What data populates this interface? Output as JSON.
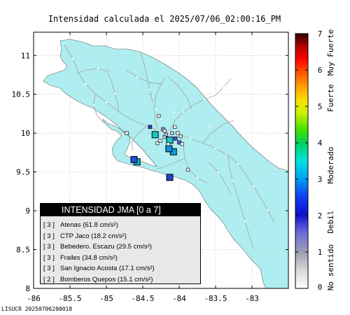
{
  "title": "Intensidad calculada el 2025/07/06_02:00:16_PM",
  "footer": "LISUCR 20250706200018",
  "map": {
    "x_ticks": [
      "-86",
      "-85.5",
      "-85",
      "-84.5",
      "-84",
      "-83.5",
      "-83"
    ],
    "y_ticks": [
      "11",
      "10.5",
      "10",
      "9.5",
      "9",
      "8.5",
      "8"
    ],
    "land_color": "#aeeef0",
    "stations": [
      {
        "lon": -84.33,
        "lat": 9.98,
        "color": "#18c8c8",
        "intensity": 3
      },
      {
        "lon": -84.13,
        "lat": 9.91,
        "color": "#18c8d8",
        "intensity": 3
      },
      {
        "lon": -84.08,
        "lat": 9.76,
        "color": "#10a0d8",
        "intensity": 3
      },
      {
        "lon": -84.14,
        "lat": 9.8,
        "color": "#1090e0",
        "intensity": 3
      },
      {
        "lon": -84.58,
        "lat": 9.63,
        "color": "#10b8c8",
        "intensity": 3
      },
      {
        "lon": -84.62,
        "lat": 9.66,
        "color": "#2050e0",
        "intensity": 2
      },
      {
        "lon": -84.13,
        "lat": 9.43,
        "color": "#2040d0",
        "intensity": 2
      },
      {
        "lon": -84.22,
        "lat": 10.05,
        "color": "#9090e0",
        "intensity": 1
      },
      {
        "lon": -84.05,
        "lat": 9.93,
        "color": "#5050d0",
        "intensity": 1
      },
      {
        "lon": -84.0,
        "lat": 9.88,
        "color": "#5858d8",
        "intensity": 1
      },
      {
        "lon": -84.4,
        "lat": 10.08,
        "color": "#3838c0",
        "intensity": 1
      },
      {
        "lon": -84.1,
        "lat": 10.0,
        "color": "#d0d0e0",
        "intensity": 0
      },
      {
        "lon": -84.2,
        "lat": 9.95,
        "color": "#d8d8e8",
        "intensity": 0
      },
      {
        "lon": -83.98,
        "lat": 9.96,
        "color": "#e0e0e0",
        "intensity": 0
      },
      {
        "lon": -84.26,
        "lat": 9.9,
        "color": "#e4e4e4",
        "intensity": 0
      },
      {
        "lon": -84.28,
        "lat": 10.22,
        "color": "#e8e8e8",
        "intensity": 0
      },
      {
        "lon": -84.72,
        "lat": 10.0,
        "color": "#e8e8e8",
        "intensity": 0
      },
      {
        "lon": -84.02,
        "lat": 10.0,
        "color": "#ececec",
        "intensity": 0
      },
      {
        "lon": -84.06,
        "lat": 10.08,
        "color": "#ececec",
        "intensity": 0
      },
      {
        "lon": -84.2,
        "lat": 10.03,
        "color": "#e0e0e0",
        "intensity": 0
      },
      {
        "lon": -83.96,
        "lat": 9.86,
        "color": "#f0f0f0",
        "intensity": 0
      },
      {
        "lon": -83.88,
        "lat": 9.53,
        "color": "#f0f0f0",
        "intensity": 0
      },
      {
        "lon": -84.15,
        "lat": 9.86,
        "color": "#e8e8e8",
        "intensity": 0
      },
      {
        "lon": -84.3,
        "lat": 9.87,
        "color": "#e8e8e8",
        "intensity": 0
      },
      {
        "lon": -84.18,
        "lat": 9.98,
        "color": "#c0c0d8",
        "intensity": 0
      }
    ]
  },
  "colorbar": {
    "ticks": [
      "7",
      "6",
      "5",
      "4",
      "3",
      "2",
      "1",
      "0"
    ],
    "labels": [
      "No sentido",
      "Debil",
      "Moderado",
      "Fuerte",
      "Muy Fuerte"
    ]
  },
  "legend": {
    "heading": "INTENSIDAD JMA [0 a 7]",
    "rows": [
      {
        "level": "[ 3 ]",
        "text": "Atenas (61.8 cm/s²)"
      },
      {
        "level": "[ 3 ]",
        "text": "CTP Jaco (18.2 cm/s²)"
      },
      {
        "level": "[ 3 ]",
        "text": "Bebedero. Escazu (29.5 cm/s²)"
      },
      {
        "level": "[ 3 ]",
        "text": "Frailes (34.8 cm/s²)"
      },
      {
        "level": "[ 3 ]",
        "text": "San Ignacio Acosta (17.1 cm/s²)"
      },
      {
        "level": "[ 2 ]",
        "text": "Bomberos Quepos (15.1 cm/s²)"
      }
    ]
  }
}
